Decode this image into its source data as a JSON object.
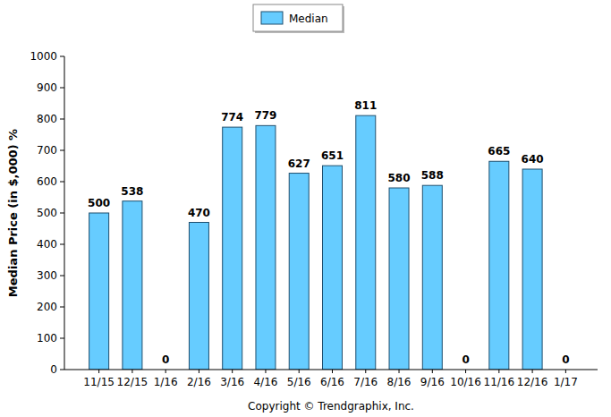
{
  "chart_data": {
    "type": "bar",
    "y_label": "Median Price (in $,000) %",
    "categories": [
      "11/15",
      "12/15",
      "1/16",
      "2/16",
      "3/16",
      "4/16",
      "5/16",
      "6/16",
      "7/16",
      "8/16",
      "9/16",
      "10/16",
      "11/16",
      "12/16",
      "1/17"
    ],
    "series": [
      {
        "name": "Median",
        "color": "#66ccff",
        "values": [
          500,
          538,
          0,
          470,
          774,
          779,
          627,
          651,
          811,
          580,
          588,
          0,
          665,
          640,
          0
        ]
      }
    ],
    "ylim": [
      0,
      1000
    ],
    "yticks": [
      0,
      100,
      200,
      300,
      400,
      500,
      600,
      700,
      800,
      900,
      1000
    ],
    "grid": false,
    "legend": "top",
    "data_labels": true,
    "annotations": [
      "Copyright © Trendgraphix, Inc."
    ]
  }
}
